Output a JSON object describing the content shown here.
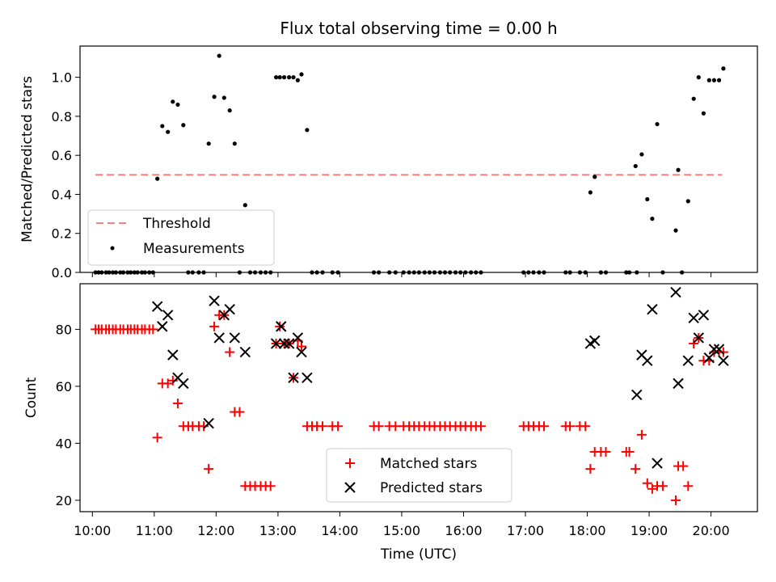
{
  "figure": {
    "title": "Flux total observing time = 0.00 h"
  },
  "chart_data": [
    {
      "type": "scatter",
      "name": "ratio-panel",
      "title": "Flux total observing time = 0.00 h",
      "xlabel": "",
      "ylabel": "Matched/Predicted stars",
      "xlim": [
        9.8,
        20.75
      ],
      "ylim": [
        0.0,
        1.16
      ],
      "yticks": [
        0.0,
        0.2,
        0.4,
        0.6,
        0.8,
        1.0
      ],
      "ytick_labels": [
        "0.0",
        "0.2",
        "0.4",
        "0.6",
        "0.8",
        "1.0"
      ],
      "grid": false,
      "legend": {
        "position": "lower-left",
        "entries": [
          {
            "label": "Threshold",
            "style": "dashed-line",
            "color": "#ff7f7f"
          },
          {
            "label": "Measurements",
            "style": "dot",
            "color": "#000000"
          }
        ]
      },
      "series": [
        {
          "name": "Threshold",
          "kind": "line",
          "color": "#ff7f7f",
          "x": [
            10.05,
            20.18
          ],
          "y": [
            0.5,
            0.5
          ]
        },
        {
          "name": "Measurements",
          "kind": "dot",
          "color": "#000000",
          "x": [
            10.05,
            10.1,
            10.15,
            10.22,
            10.27,
            10.33,
            10.38,
            10.45,
            10.5,
            10.57,
            10.62,
            10.68,
            10.73,
            10.8,
            10.85,
            10.92,
            10.98,
            11.05,
            11.13,
            11.22,
            11.3,
            11.38,
            11.47,
            11.55,
            11.62,
            11.72,
            11.8,
            11.88,
            11.97,
            12.05,
            12.13,
            12.22,
            12.3,
            12.38,
            12.47,
            12.55,
            12.63,
            12.72,
            12.8,
            12.88,
            12.97,
            13.03,
            13.1,
            13.18,
            13.25,
            13.32,
            13.38,
            13.47,
            13.55,
            13.63,
            13.72,
            13.88,
            13.97,
            14.55,
            14.63,
            14.8,
            14.9,
            15.03,
            15.12,
            15.2,
            15.28,
            15.37,
            15.45,
            15.53,
            15.62,
            15.7,
            15.78,
            15.87,
            15.95,
            16.03,
            16.12,
            16.2,
            16.28,
            16.97,
            17.05,
            17.13,
            17.22,
            17.3,
            17.65,
            17.72,
            17.88,
            17.97,
            18.05,
            18.12,
            18.22,
            18.3,
            18.63,
            18.68,
            18.78,
            18.8,
            18.88,
            18.97,
            19.05,
            19.13,
            19.22,
            19.43,
            19.47,
            19.53,
            19.63,
            19.72,
            19.8,
            19.88,
            19.97,
            20.05,
            20.13,
            20.2
          ],
          "y": [
            0,
            0,
            0,
            0,
            0,
            0,
            0,
            0,
            0,
            0,
            0,
            0,
            0,
            0,
            0,
            0,
            0,
            0.48,
            0.75,
            0.72,
            0.875,
            0.86,
            0.755,
            0,
            0,
            0,
            0,
            0.66,
            0.9,
            1.11,
            0.895,
            0.83,
            0.66,
            0,
            0.345,
            0,
            0,
            0,
            0,
            0,
            1.0,
            1.0,
            1.0,
            1.0,
            1.0,
            0.985,
            1.015,
            0.73,
            0,
            0,
            0,
            0,
            0,
            0,
            0,
            0,
            0,
            0,
            0,
            0,
            0,
            0,
            0,
            0,
            0,
            0,
            0,
            0,
            0,
            0,
            0,
            0,
            0,
            0,
            0,
            0,
            0,
            0,
            0,
            0,
            0,
            0,
            0.41,
            0.49,
            0,
            0,
            0,
            0,
            0.545,
            0,
            0.605,
            0.375,
            0.275,
            0.76,
            0,
            0.215,
            0.525,
            0,
            0.365,
            0.89,
            1.0,
            0.815,
            0.985,
            0.985,
            0.985,
            1.045
          ]
        }
      ]
    },
    {
      "type": "scatter",
      "name": "count-panel",
      "title": "",
      "xlabel": "Time (UTC)",
      "ylabel": "Count",
      "xlim": [
        9.8,
        20.75
      ],
      "ylim": [
        16,
        96
      ],
      "yticks": [
        20,
        40,
        60,
        80
      ],
      "ytick_labels": [
        "20",
        "40",
        "60",
        "80"
      ],
      "xticks": [
        10,
        11,
        12,
        13,
        14,
        15,
        16,
        17,
        18,
        19,
        20
      ],
      "xtick_labels": [
        "10:00",
        "11:00",
        "12:00",
        "13:00",
        "14:00",
        "15:00",
        "16:00",
        "17:00",
        "18:00",
        "19:00",
        "20:00"
      ],
      "grid": false,
      "legend": {
        "position": "lower-center",
        "entries": [
          {
            "label": "Matched stars",
            "style": "plus",
            "color": "#ff0000"
          },
          {
            "label": "Predicted stars",
            "style": "x",
            "color": "#000000"
          }
        ]
      },
      "series": [
        {
          "name": "Matched stars",
          "kind": "plus",
          "color": "#ff0000",
          "points": [
            [
              10.05,
              80
            ],
            [
              10.1,
              80
            ],
            [
              10.15,
              80
            ],
            [
              10.22,
              80
            ],
            [
              10.27,
              80
            ],
            [
              10.33,
              80
            ],
            [
              10.38,
              80
            ],
            [
              10.45,
              80
            ],
            [
              10.5,
              80
            ],
            [
              10.57,
              80
            ],
            [
              10.62,
              80
            ],
            [
              10.68,
              80
            ],
            [
              10.73,
              80
            ],
            [
              10.8,
              80
            ],
            [
              10.85,
              80
            ],
            [
              10.92,
              80
            ],
            [
              10.98,
              80
            ],
            [
              11.05,
              42
            ],
            [
              11.13,
              61
            ],
            [
              11.22,
              61
            ],
            [
              11.3,
              62
            ],
            [
              11.38,
              54
            ],
            [
              11.47,
              46
            ],
            [
              11.55,
              46
            ],
            [
              11.62,
              46
            ],
            [
              11.72,
              46
            ],
            [
              11.8,
              46
            ],
            [
              11.88,
              31
            ],
            [
              11.97,
              81
            ],
            [
              12.05,
              85
            ],
            [
              12.13,
              85
            ],
            [
              12.22,
              72
            ],
            [
              12.3,
              51
            ],
            [
              12.38,
              51
            ],
            [
              12.47,
              25
            ],
            [
              12.55,
              25
            ],
            [
              12.63,
              25
            ],
            [
              12.72,
              25
            ],
            [
              12.8,
              25
            ],
            [
              12.88,
              25
            ],
            [
              12.97,
              75
            ],
            [
              13.03,
              81
            ],
            [
              13.1,
              75
            ],
            [
              13.18,
              75
            ],
            [
              13.25,
              63
            ],
            [
              13.32,
              76
            ],
            [
              13.38,
              74
            ],
            [
              13.47,
              46
            ],
            [
              13.55,
              46
            ],
            [
              13.63,
              46
            ],
            [
              13.72,
              46
            ],
            [
              13.88,
              46
            ],
            [
              13.97,
              46
            ],
            [
              14.55,
              46
            ],
            [
              14.63,
              46
            ],
            [
              14.8,
              46
            ],
            [
              14.9,
              46
            ],
            [
              15.03,
              46
            ],
            [
              15.12,
              46
            ],
            [
              15.2,
              46
            ],
            [
              15.28,
              46
            ],
            [
              15.37,
              46
            ],
            [
              15.45,
              46
            ],
            [
              15.53,
              46
            ],
            [
              15.62,
              46
            ],
            [
              15.7,
              46
            ],
            [
              15.78,
              46
            ],
            [
              15.87,
              46
            ],
            [
              15.95,
              46
            ],
            [
              16.03,
              46
            ],
            [
              16.12,
              46
            ],
            [
              16.2,
              46
            ],
            [
              16.28,
              46
            ],
            [
              16.97,
              46
            ],
            [
              17.05,
              46
            ],
            [
              17.13,
              46
            ],
            [
              17.22,
              46
            ],
            [
              17.3,
              46
            ],
            [
              17.65,
              46
            ],
            [
              17.72,
              46
            ],
            [
              17.88,
              46
            ],
            [
              17.97,
              46
            ],
            [
              18.05,
              31
            ],
            [
              18.12,
              37
            ],
            [
              18.22,
              37
            ],
            [
              18.3,
              37
            ],
            [
              18.63,
              37
            ],
            [
              18.68,
              37
            ],
            [
              18.78,
              31
            ],
            [
              18.88,
              43
            ],
            [
              18.97,
              26
            ],
            [
              19.05,
              24
            ],
            [
              19.13,
              25
            ],
            [
              19.22,
              25
            ],
            [
              19.43,
              20
            ],
            [
              19.47,
              32
            ],
            [
              19.55,
              32
            ],
            [
              19.63,
              25
            ],
            [
              19.72,
              75
            ],
            [
              19.8,
              77
            ],
            [
              19.88,
              69
            ],
            [
              19.97,
              69
            ],
            [
              20.05,
              72
            ],
            [
              20.13,
              72
            ],
            [
              20.2,
              72
            ]
          ]
        },
        {
          "name": "Predicted stars",
          "kind": "x",
          "color": "#000000",
          "points": [
            [
              11.05,
              88
            ],
            [
              11.13,
              81
            ],
            [
              11.22,
              85
            ],
            [
              11.3,
              71
            ],
            [
              11.38,
              63
            ],
            [
              11.47,
              61
            ],
            [
              11.88,
              47
            ],
            [
              11.97,
              90
            ],
            [
              12.05,
              77
            ],
            [
              12.13,
              85
            ],
            [
              12.22,
              87
            ],
            [
              12.3,
              77
            ],
            [
              12.47,
              72
            ],
            [
              12.97,
              75
            ],
            [
              13.05,
              81
            ],
            [
              13.1,
              75
            ],
            [
              13.18,
              75
            ],
            [
              13.25,
              63
            ],
            [
              13.32,
              77
            ],
            [
              13.38,
              72
            ],
            [
              13.47,
              63
            ],
            [
              18.05,
              75
            ],
            [
              18.12,
              76
            ],
            [
              18.8,
              57
            ],
            [
              18.88,
              71
            ],
            [
              18.97,
              69
            ],
            [
              19.05,
              87
            ],
            [
              19.13,
              33
            ],
            [
              19.43,
              93
            ],
            [
              19.47,
              61
            ],
            [
              19.63,
              69
            ],
            [
              19.72,
              84
            ],
            [
              19.8,
              77
            ],
            [
              19.88,
              85
            ],
            [
              19.97,
              70
            ],
            [
              20.05,
              73
            ],
            [
              20.13,
              73
            ],
            [
              20.2,
              69
            ]
          ]
        }
      ]
    }
  ]
}
